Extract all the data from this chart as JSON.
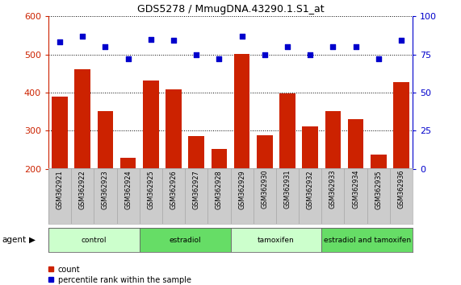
{
  "title": "GDS5278 / MmugDNA.43290.1.S1_at",
  "samples": [
    "GSM362921",
    "GSM362922",
    "GSM362923",
    "GSM362924",
    "GSM362925",
    "GSM362926",
    "GSM362927",
    "GSM362928",
    "GSM362929",
    "GSM362930",
    "GSM362931",
    "GSM362932",
    "GSM362933",
    "GSM362934",
    "GSM362935",
    "GSM362936"
  ],
  "counts": [
    390,
    462,
    352,
    228,
    432,
    408,
    285,
    252,
    502,
    288,
    397,
    312,
    352,
    330,
    237,
    428
  ],
  "percentiles": [
    83,
    87,
    80,
    72,
    85,
    84,
    75,
    72,
    87,
    75,
    80,
    75,
    80,
    80,
    72,
    84
  ],
  "bar_color": "#cc2200",
  "dot_color": "#0000cc",
  "ylim_left": [
    200,
    600
  ],
  "ylim_right": [
    0,
    100
  ],
  "yticks_left": [
    200,
    300,
    400,
    500,
    600
  ],
  "yticks_right": [
    0,
    25,
    50,
    75,
    100
  ],
  "groups": [
    {
      "label": "control",
      "start": 0,
      "end": 4,
      "color": "#ccffcc"
    },
    {
      "label": "estradiol",
      "start": 4,
      "end": 8,
      "color": "#66dd66"
    },
    {
      "label": "tamoxifen",
      "start": 8,
      "end": 12,
      "color": "#ccffcc"
    },
    {
      "label": "estradiol and tamoxifen",
      "start": 12,
      "end": 16,
      "color": "#66dd66"
    }
  ],
  "agent_label": "agent",
  "legend_count": "count",
  "legend_percentile": "percentile rank within the sample",
  "right_axis_color": "#0000cc",
  "left_axis_color": "#cc2200",
  "grid_color": "#000000",
  "sample_bg_color": "#cccccc",
  "cell_edge_color": "#aaaaaa"
}
